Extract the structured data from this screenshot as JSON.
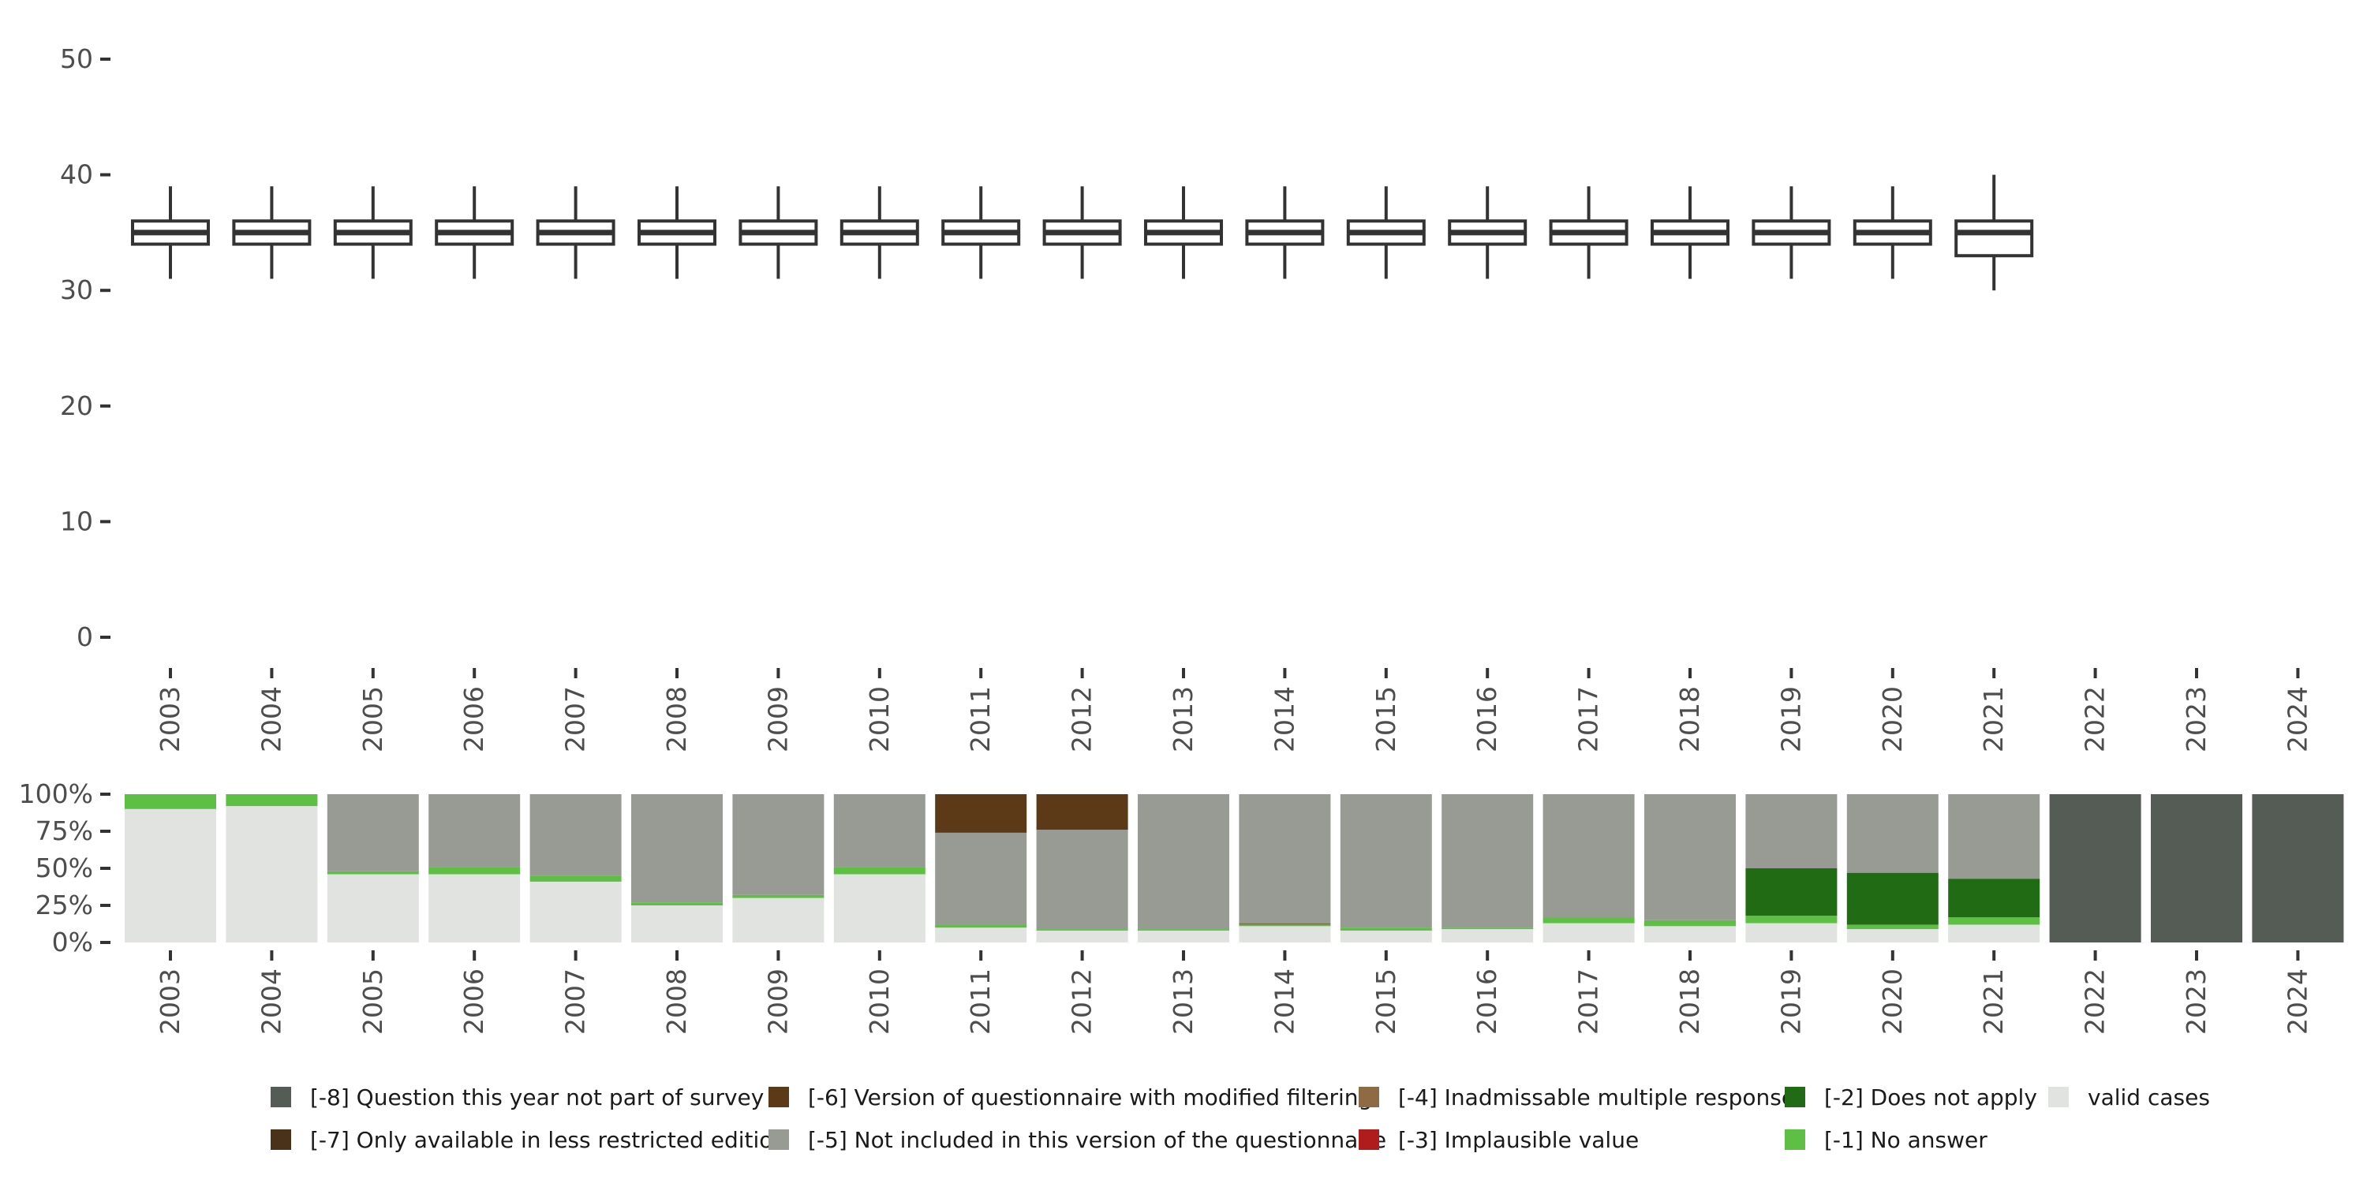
{
  "chart_data": [
    {
      "type": "boxplot",
      "title": "",
      "xlabel": "",
      "ylabel": "",
      "ylim": [
        0,
        50
      ],
      "y_ticks": [
        0,
        10,
        20,
        30,
        40,
        50
      ],
      "categories": [
        "2003",
        "2004",
        "2005",
        "2006",
        "2007",
        "2008",
        "2009",
        "2010",
        "2011",
        "2012",
        "2013",
        "2014",
        "2015",
        "2016",
        "2017",
        "2018",
        "2019",
        "2020",
        "2021",
        "2022",
        "2023",
        "2024"
      ],
      "boxes": [
        {
          "year": "2003",
          "whisker_low": 31,
          "q1": 34,
          "median": 35,
          "q3": 36,
          "whisker_high": 39
        },
        {
          "year": "2004",
          "whisker_low": 31,
          "q1": 34,
          "median": 35,
          "q3": 36,
          "whisker_high": 39
        },
        {
          "year": "2005",
          "whisker_low": 31,
          "q1": 34,
          "median": 35,
          "q3": 36,
          "whisker_high": 39
        },
        {
          "year": "2006",
          "whisker_low": 31,
          "q1": 34,
          "median": 35,
          "q3": 36,
          "whisker_high": 39
        },
        {
          "year": "2007",
          "whisker_low": 31,
          "q1": 34,
          "median": 35,
          "q3": 36,
          "whisker_high": 39
        },
        {
          "year": "2008",
          "whisker_low": 31,
          "q1": 34,
          "median": 35,
          "q3": 36,
          "whisker_high": 39
        },
        {
          "year": "2009",
          "whisker_low": 31,
          "q1": 34,
          "median": 35,
          "q3": 36,
          "whisker_high": 39
        },
        {
          "year": "2010",
          "whisker_low": 31,
          "q1": 34,
          "median": 35,
          "q3": 36,
          "whisker_high": 39
        },
        {
          "year": "2011",
          "whisker_low": 31,
          "q1": 34,
          "median": 35,
          "q3": 36,
          "whisker_high": 39
        },
        {
          "year": "2012",
          "whisker_low": 31,
          "q1": 34,
          "median": 35,
          "q3": 36,
          "whisker_high": 39
        },
        {
          "year": "2013",
          "whisker_low": 31,
          "q1": 34,
          "median": 35,
          "q3": 36,
          "whisker_high": 39
        },
        {
          "year": "2014",
          "whisker_low": 31,
          "q1": 34,
          "median": 35,
          "q3": 36,
          "whisker_high": 39
        },
        {
          "year": "2015",
          "whisker_low": 31,
          "q1": 34,
          "median": 35,
          "q3": 36,
          "whisker_high": 39
        },
        {
          "year": "2016",
          "whisker_low": 31,
          "q1": 34,
          "median": 35,
          "q3": 36,
          "whisker_high": 39
        },
        {
          "year": "2017",
          "whisker_low": 31,
          "q1": 34,
          "median": 35,
          "q3": 36,
          "whisker_high": 39
        },
        {
          "year": "2018",
          "whisker_low": 31,
          "q1": 34,
          "median": 35,
          "q3": 36,
          "whisker_high": 39
        },
        {
          "year": "2019",
          "whisker_low": 31,
          "q1": 34,
          "median": 35,
          "q3": 36,
          "whisker_high": 39
        },
        {
          "year": "2020",
          "whisker_low": 31,
          "q1": 34,
          "median": 35,
          "q3": 36,
          "whisker_high": 39
        },
        {
          "year": "2021",
          "whisker_low": 30,
          "q1": 33,
          "median": 35,
          "q3": 36,
          "whisker_high": 40
        }
      ]
    },
    {
      "type": "stacked_bar",
      "title": "",
      "xlabel": "",
      "ylabel": "",
      "ylim": [
        0,
        100
      ],
      "y_ticks": [
        0,
        25,
        50,
        75,
        100
      ],
      "y_tick_labels": [
        "0%",
        "25%",
        "50%",
        "75%",
        "100%"
      ],
      "categories": [
        "2003",
        "2004",
        "2005",
        "2006",
        "2007",
        "2008",
        "2009",
        "2010",
        "2011",
        "2012",
        "2013",
        "2014",
        "2015",
        "2016",
        "2017",
        "2018",
        "2019",
        "2020",
        "2021",
        "2022",
        "2023",
        "2024"
      ],
      "series": [
        {
          "name": "valid cases",
          "color": "#e0e3e0",
          "values": [
            90,
            92,
            46,
            46,
            41,
            25,
            30,
            46,
            10,
            8,
            8,
            11,
            8,
            9,
            13,
            11,
            13,
            9,
            12,
            0,
            0,
            0
          ]
        },
        {
          "name": "[-1] No answer",
          "color": "#5dbf44",
          "values": [
            10,
            8,
            2,
            5,
            4,
            2,
            2,
            5,
            2,
            1,
            1,
            1,
            2,
            1,
            4,
            4,
            5,
            3,
            5,
            0,
            0,
            0
          ]
        },
        {
          "name": "[-2] Does not apply",
          "color": "#216b14",
          "values": [
            0,
            0,
            0,
            0,
            0,
            0,
            0,
            0,
            0,
            0,
            0,
            0,
            0,
            0,
            0,
            0,
            32,
            35,
            26,
            0,
            0,
            0
          ]
        },
        {
          "name": "[-3] Implausible value",
          "color": "#b01c1c",
          "values": [
            0,
            0,
            0,
            0,
            0,
            0,
            0,
            0,
            0,
            0,
            0,
            0,
            0,
            0,
            0,
            0,
            0,
            0,
            0,
            0,
            0,
            0
          ]
        },
        {
          "name": "[-4] Inadmissable multiple response",
          "color": "#8e6a45",
          "values": [
            0,
            0,
            0,
            0,
            0,
            0,
            0,
            0,
            0,
            0,
            0,
            1,
            0,
            0,
            0,
            0,
            0,
            0,
            0,
            0,
            0,
            0
          ]
        },
        {
          "name": "[-5] Not included in this version of the questionnaire",
          "color": "#979b94",
          "values": [
            0,
            0,
            52,
            49,
            55,
            73,
            68,
            49,
            62,
            67,
            91,
            87,
            90,
            90,
            83,
            85,
            50,
            53,
            57,
            0,
            0,
            0
          ]
        },
        {
          "name": "[-6] Version of questionnaire with modified filtering",
          "color": "#5c3a17",
          "values": [
            0,
            0,
            0,
            0,
            0,
            0,
            0,
            0,
            26,
            24,
            0,
            0,
            0,
            0,
            0,
            0,
            0,
            0,
            0,
            0,
            0,
            0
          ]
        },
        {
          "name": "[-7] Only available in less restricted edition",
          "color": "#4a3218",
          "values": [
            0,
            0,
            0,
            0,
            0,
            0,
            0,
            0,
            0,
            0,
            0,
            0,
            0,
            0,
            0,
            0,
            0,
            0,
            0,
            0,
            0,
            0
          ]
        },
        {
          "name": "[-8] Question this year not part of survey",
          "color": "#555b55",
          "values": [
            0,
            0,
            0,
            0,
            0,
            0,
            0,
            0,
            0,
            0,
            0,
            0,
            0,
            0,
            0,
            0,
            0,
            0,
            0,
            100,
            100,
            100
          ]
        }
      ],
      "legend": {
        "placement": "bottom",
        "order": [
          "[-8] Question this year not part of survey",
          "[-6] Version of questionnaire with modified filtering",
          "[-4] Inadmissable multiple response",
          "[-2] Does not apply",
          "valid cases",
          "[-7] Only available in less restricted edition",
          "[-5] Not included in this version of the questionnaire",
          "[-3] Implausible value",
          "[-1] No answer"
        ]
      }
    }
  ]
}
